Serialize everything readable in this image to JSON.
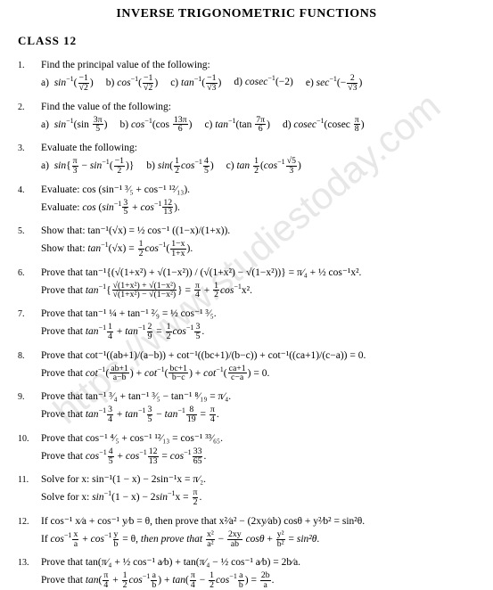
{
  "title": "INVERSE TRIGONOMETRIC FUNCTIONS",
  "classLabel": "CLASS  12",
  "watermark": "https://www.studiestoday.com",
  "questions": [
    {
      "n": "1.",
      "text": "Find the principal value of the following:",
      "parts": [
        "a)  sin⁻¹(⁻¹⁄√₂)",
        "b) cos⁻¹(⁻¹⁄√₂)",
        "c) tan⁻¹(⁻¹⁄√₃)",
        "d) cosec⁻¹(−2)",
        "e) sec⁻¹(−²⁄√₃)"
      ]
    },
    {
      "n": "2.",
      "text": "Find the value of the following:",
      "parts": [
        "a)  sin⁻¹(sin ³π⁄₅)",
        "b) cos⁻¹(cos ¹³π⁄₆)",
        "c) tan⁻¹(tan ⁷π⁄₆)",
        "d) cosec⁻¹(cosec π⁄₈)"
      ]
    },
    {
      "n": "3.",
      "text": "Evaluate the following:",
      "parts": [
        "a)  sin{π⁄₃ − sin⁻¹(⁻¹⁄₂)}",
        "b) sin(½ cos⁻¹ ⁴⁄₅)",
        "c) tan ½(cos⁻¹ √5⁄₃)"
      ]
    },
    {
      "n": "4.",
      "text": "Evaluate: cos (sin⁻¹ ³⁄₅ + cos⁻¹ ¹²⁄₁₃)."
    },
    {
      "n": "5.",
      "text": "Show that: tan⁻¹(√x) = ½ cos⁻¹ ((1−x)/(1+x))."
    },
    {
      "n": "6.",
      "text": "Prove that tan⁻¹{(√(1+x²) + √(1−x²)) / (√(1+x²) − √(1−x²))} = π⁄₄ + ½ cos⁻¹x²."
    },
    {
      "n": "7.",
      "text": "Prove that tan⁻¹ ¼ + tan⁻¹ ²⁄₉ = ½ cos⁻¹ ³⁄₅."
    },
    {
      "n": "8.",
      "text": "Prove that cot⁻¹((ab+1)/(a−b)) + cot⁻¹((bc+1)/(b−c)) + cot⁻¹((ca+1)/(c−a)) = 0."
    },
    {
      "n": "9.",
      "text": "Prove that tan⁻¹ ³⁄₄ + tan⁻¹ ³⁄₅ − tan⁻¹ ⁸⁄₁₉ = π⁄₄."
    },
    {
      "n": "10.",
      "text": "Prove that cos⁻¹ ⁴⁄₅ + cos⁻¹ ¹²⁄₁₃ = cos⁻¹ ³³⁄₆₅."
    },
    {
      "n": "11.",
      "text": "Solve for x: sin⁻¹(1 − x) − 2sin⁻¹x = π⁄₂."
    },
    {
      "n": "12.",
      "text": "If cos⁻¹ x⁄a + cos⁻¹ y⁄b = θ, then prove that x²⁄a² − (2xy⁄ab) cosθ + y²⁄b² = sin²θ."
    },
    {
      "n": "13.",
      "text": "Prove that tan(π⁄₄ + ½ cos⁻¹ a⁄b) + tan(π⁄₄ − ½ cos⁻¹ a⁄b) = 2b⁄a."
    }
  ]
}
